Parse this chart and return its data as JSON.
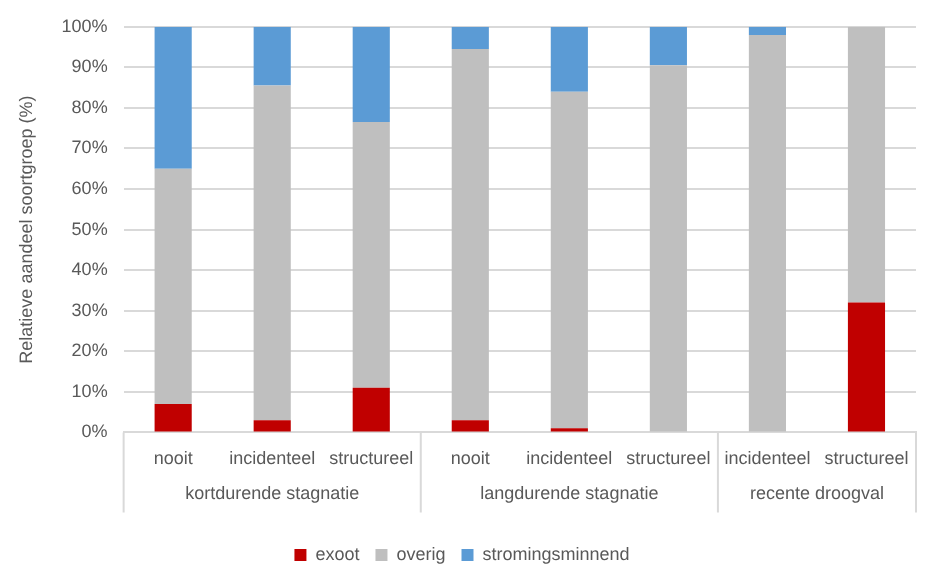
{
  "chart_data": {
    "type": "bar",
    "stacked": true,
    "ylabel": "Relatieve aandeel soortgroep (%)",
    "categories": [
      "nooit",
      "incidenteel",
      "structureel",
      "nooit",
      "incidenteel",
      "structureel",
      "incidenteel",
      "structureel"
    ],
    "series": [
      {
        "name": "exoot",
        "color": "#c00000",
        "values": [
          7,
          3,
          11,
          3,
          1,
          0,
          0,
          32
        ]
      },
      {
        "name": "overig",
        "color": "#bfbfbf",
        "values": [
          58,
          82.5,
          65.5,
          91.5,
          83,
          90.5,
          98,
          68
        ]
      },
      {
        "name": "stromingsminnend",
        "color": "#5b9bd5",
        "values": [
          35,
          14.5,
          23.5,
          5.5,
          16,
          9.5,
          2,
          0
        ]
      }
    ],
    "ylim": [
      0,
      100
    ],
    "yticks": [
      {
        "value": 0,
        "label": "0%"
      },
      {
        "value": 10,
        "label": "10%"
      },
      {
        "value": 20,
        "label": "20%"
      },
      {
        "value": 30,
        "label": "30%"
      },
      {
        "value": 40,
        "label": "40%"
      },
      {
        "value": 50,
        "label": "50%"
      },
      {
        "value": 60,
        "label": "60%"
      },
      {
        "value": 70,
        "label": "70%"
      },
      {
        "value": 80,
        "label": "80%"
      },
      {
        "value": 90,
        "label": "90%"
      },
      {
        "value": 100,
        "label": "100%"
      }
    ],
    "grid": "y",
    "legend": "bottom",
    "annotations": [
      "kortdurende stagnatie",
      "langdurende stagnatie",
      "recente droogval"
    ]
  }
}
